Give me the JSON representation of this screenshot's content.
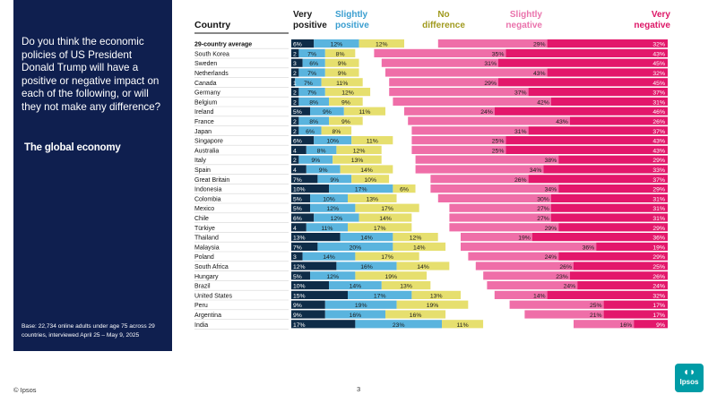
{
  "panel": {
    "question": "Do you think the economic policies of US President Donald Trump will have a positive or negative impact on each of the following, or will they not make any difference?",
    "subtitle": "The global economy",
    "base_note": "Base: 22,734 online adults under age 75 across 29 countries, interviewed April 25 – May 9, 2025"
  },
  "footer": {
    "copyright": "© Ipsos",
    "page_number": "3"
  },
  "logo": {
    "text": "Ipsos"
  },
  "colors": {
    "very_positive": "#0e2c48",
    "slightly_positive": "#5ab4de",
    "no_difference": "#e6df6e",
    "blank": "#ffffff",
    "slightly_negative": "#ef6ea8",
    "very_negative": "#e3176b",
    "panel": "#0f1f4f"
  },
  "chart_data": {
    "type": "bar",
    "orientation": "horizontal",
    "stacked": true,
    "title": "The global economy",
    "column_header": "Country",
    "legend": [
      {
        "key": "very_positive",
        "label": "Very positive",
        "color": "#1a1a1a"
      },
      {
        "key": "slightly_positive",
        "label": "Slightly positive",
        "color": "#3a9ed0"
      },
      {
        "key": "no_difference",
        "label": "No difference",
        "color": "#a09a1e"
      },
      {
        "key": "slightly_negative",
        "label": "Slightly negative",
        "color": "#ea73ac"
      },
      {
        "key": "very_negative",
        "label": "Very negative",
        "color": "#dd1767"
      }
    ],
    "categories": [
      "29-country average",
      "South Korea",
      "Sweden",
      "Netherlands",
      "Canada",
      "Germany",
      "Belgium",
      "Ireland",
      "France",
      "Japan",
      "Singapore",
      "Australia",
      "Italy",
      "Spain",
      "Great Britain",
      "Indonesia",
      "Colombia",
      "Mexico",
      "Chile",
      "Türkiye",
      "Thailand",
      "Malaysia",
      "Poland",
      "South Africa",
      "Hungary",
      "Brazil",
      "United States",
      "Peru",
      "Argentina",
      "India"
    ],
    "series": [
      {
        "name": "Very positive",
        "key": "very_positive",
        "values": [
          6,
          2,
          3,
          2,
          1,
          2,
          2,
          5,
          2,
          2,
          6,
          4,
          2,
          4,
          7,
          10,
          5,
          5,
          6,
          4,
          13,
          7,
          3,
          12,
          5,
          10,
          15,
          9,
          9,
          17
        ]
      },
      {
        "name": "Slightly positive",
        "key": "slightly_positive",
        "values": [
          12,
          7,
          6,
          7,
          7,
          7,
          8,
          9,
          8,
          6,
          10,
          8,
          9,
          9,
          9,
          17,
          10,
          12,
          12,
          11,
          14,
          20,
          14,
          16,
          12,
          14,
          17,
          19,
          16,
          23
        ]
      },
      {
        "name": "No difference",
        "key": "no_difference",
        "values": [
          12,
          8,
          9,
          9,
          11,
          12,
          9,
          11,
          9,
          8,
          11,
          12,
          13,
          14,
          10,
          6,
          13,
          17,
          14,
          17,
          12,
          14,
          17,
          14,
          19,
          13,
          13,
          19,
          16,
          11
        ]
      },
      {
        "name": "Slightly negative",
        "key": "slightly_negative",
        "values": [
          29,
          35,
          31,
          43,
          29,
          37,
          42,
          24,
          43,
          31,
          25,
          25,
          38,
          34,
          26,
          34,
          30,
          27,
          27,
          29,
          19,
          36,
          24,
          26,
          23,
          24,
          14,
          25,
          21,
          16
        ]
      },
      {
        "name": "Very negative",
        "key": "very_negative",
        "values": [
          32,
          43,
          45,
          32,
          45,
          37,
          31,
          46,
          26,
          37,
          43,
          43,
          29,
          33,
          37,
          29,
          31,
          31,
          31,
          29,
          36,
          19,
          29,
          25,
          26,
          24,
          32,
          17,
          17,
          9
        ]
      }
    ],
    "xlim": [
      0,
      100
    ]
  }
}
